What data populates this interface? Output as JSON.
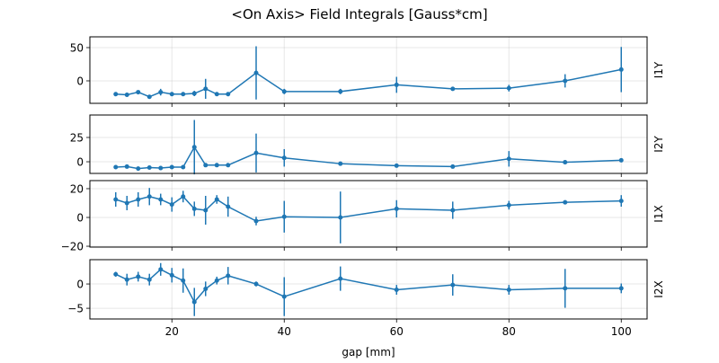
{
  "chart_data": {
    "type": "line",
    "title": "<On Axis> Field Integrals [Gauss*cm]",
    "xlabel": "gap [mm]",
    "xlim": [
      5.4,
      104.6
    ],
    "xticks": [
      20,
      40,
      60,
      80,
      100
    ],
    "grid": true,
    "color": "#1f77b4",
    "x": [
      10,
      12,
      14,
      16,
      18,
      20,
      22,
      24,
      26,
      28,
      30,
      35,
      40,
      50,
      60,
      70,
      80,
      90,
      100
    ],
    "panels": [
      {
        "name": "I1Y",
        "ylim": [
          -33.8,
          66.2
        ],
        "yticks": [
          0,
          50
        ],
        "values": [
          -20,
          -21,
          -17,
          -24,
          -17,
          -20,
          -20,
          -19,
          -12,
          -20,
          -20,
          12,
          -16,
          -16,
          -6,
          -12,
          -11,
          0,
          17
        ],
        "errors": [
          3,
          3,
          2,
          2,
          5,
          3,
          3,
          4,
          15,
          3,
          3,
          40,
          4,
          4,
          12,
          2,
          5,
          10,
          34
        ]
      },
      {
        "name": "I2Y",
        "ylim": [
          -12,
          48.1
        ],
        "yticks": [
          0,
          25
        ],
        "values": [
          -5.5,
          -5,
          -7,
          -6,
          -6.5,
          -5.5,
          -5.5,
          15,
          -3.5,
          -3.5,
          -3.5,
          9,
          4,
          -2,
          -4,
          -5,
          3,
          -0.5,
          1.5
        ],
        "errors": [
          1,
          1,
          1,
          1,
          1,
          1,
          1,
          28,
          1,
          1,
          2,
          20,
          9,
          1,
          1,
          1,
          8,
          1,
          2
        ]
      },
      {
        "name": "I1X",
        "ylim": [
          -20.6,
          25.6
        ],
        "yticks": [
          -20,
          0,
          20
        ],
        "values": [
          12.5,
          10,
          12.5,
          14.5,
          12.5,
          9,
          14.5,
          6,
          5,
          12.5,
          7.5,
          -2.5,
          0.5,
          0,
          6,
          5,
          8.5,
          10.5,
          11.5
        ],
        "errors": [
          5,
          5,
          5,
          6,
          4,
          5,
          4,
          5,
          10,
          3,
          7,
          3,
          11,
          18,
          6,
          6,
          3,
          1,
          4
        ]
      },
      {
        "name": "I2X",
        "ylim": [
          -7.2,
          5
        ],
        "yticks": [
          -5,
          0
        ],
        "values": [
          2,
          0.9,
          1.5,
          0.9,
          3,
          1.8,
          0.7,
          -3.7,
          -1,
          0.7,
          1.7,
          0,
          -2.6,
          1.1,
          -1.2,
          -0.2,
          -1.2,
          -0.9,
          -0.9
        ],
        "errors": [
          0.5,
          1.2,
          1,
          1.2,
          1.3,
          1.5,
          2.5,
          2.9,
          1.5,
          0.8,
          1.8,
          0.5,
          4,
          2.5,
          1,
          2.2,
          1,
          4,
          1
        ]
      }
    ]
  }
}
